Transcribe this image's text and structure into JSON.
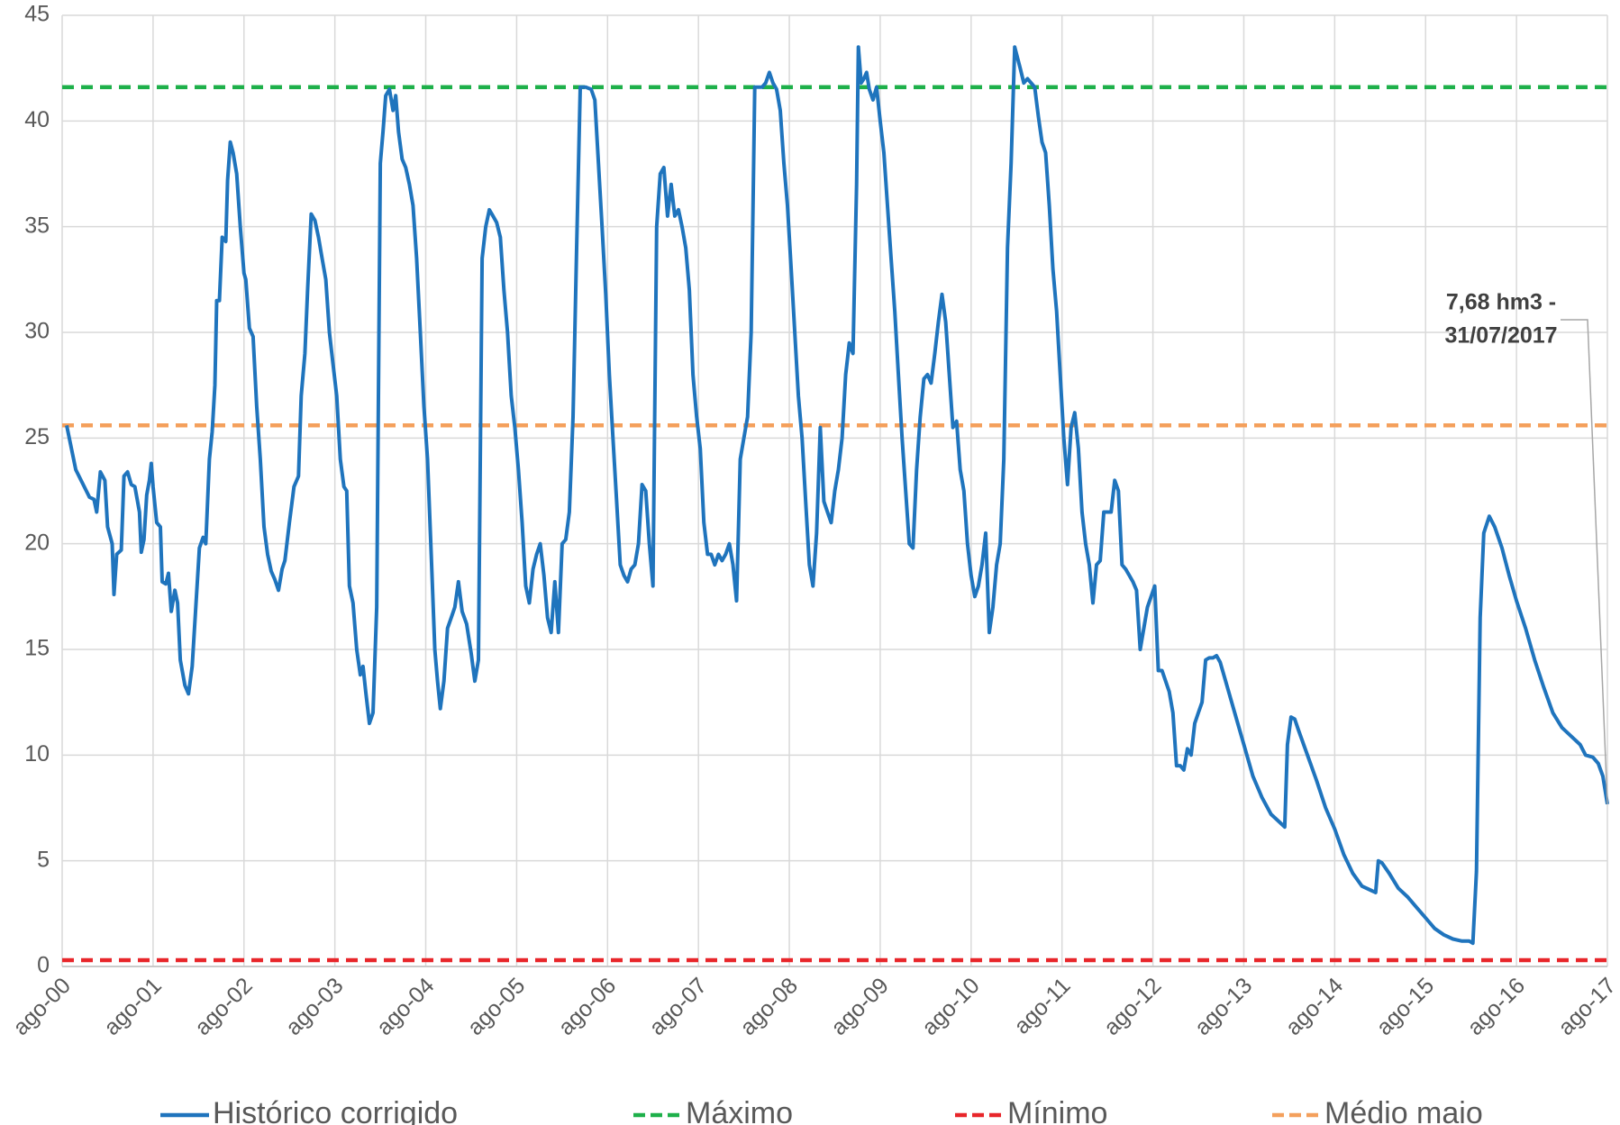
{
  "chart_data": {
    "type": "line",
    "xlim": [
      0,
      17
    ],
    "xticks": [
      {
        "value": 0,
        "label": "ago-00"
      },
      {
        "value": 1,
        "label": "ago-01"
      },
      {
        "value": 2,
        "label": "ago-02"
      },
      {
        "value": 3,
        "label": "ago-03"
      },
      {
        "value": 4,
        "label": "ago-04"
      },
      {
        "value": 5,
        "label": "ago-05"
      },
      {
        "value": 6,
        "label": "ago-06"
      },
      {
        "value": 7,
        "label": "ago-07"
      },
      {
        "value": 8,
        "label": "ago-08"
      },
      {
        "value": 9,
        "label": "ago-09"
      },
      {
        "value": 10,
        "label": "ago-10"
      },
      {
        "value": 11,
        "label": "ago-11"
      },
      {
        "value": 12,
        "label": "ago-12"
      },
      {
        "value": 13,
        "label": "ago-13"
      },
      {
        "value": 14,
        "label": "ago-14"
      },
      {
        "value": 15,
        "label": "ago-15"
      },
      {
        "value": 16,
        "label": "ago-16"
      },
      {
        "value": 17,
        "label": "ago-17"
      }
    ],
    "ylim": [
      0,
      45
    ],
    "yticks": [
      0,
      5,
      10,
      15,
      20,
      25,
      30,
      35,
      40,
      45
    ],
    "grid": true,
    "legend": "bottom",
    "annotation": [
      "7,68 hm3 -",
      "31/07/2017"
    ],
    "series": [
      {
        "name": "Histórico corrigido",
        "color": "#1f74bd",
        "dash": false,
        "x": [
          0.05,
          0.15,
          0.3,
          0.35,
          0.38,
          0.42,
          0.47,
          0.5,
          0.55,
          0.57,
          0.6,
          0.65,
          0.68,
          0.72,
          0.76,
          0.8,
          0.85,
          0.87,
          0.9,
          0.93,
          0.96,
          0.98,
          1,
          1.04,
          1.08,
          1.1,
          1.14,
          1.17,
          1.2,
          1.24,
          1.27,
          1.3,
          1.35,
          1.39,
          1.43,
          1.47,
          1.51,
          1.55,
          1.58,
          1.62,
          1.65,
          1.68,
          1.7,
          1.73,
          1.76,
          1.8,
          1.82,
          1.85,
          1.88,
          1.92,
          1.96,
          2,
          2.02,
          2.06,
          2.1,
          2.14,
          2.18,
          2.22,
          2.26,
          2.3,
          2.34,
          2.38,
          2.42,
          2.45,
          2.5,
          2.55,
          2.6,
          2.63,
          2.67,
          2.7,
          2.74,
          2.78,
          2.82,
          2.86,
          2.9,
          2.94,
          2.98,
          3.02,
          3.06,
          3.1,
          3.13,
          3.16,
          3.2,
          3.24,
          3.28,
          3.31,
          3.34,
          3.38,
          3.42,
          3.46,
          3.5,
          3.53,
          3.56,
          3.6,
          3.64,
          3.67,
          3.7,
          3.74,
          3.78,
          3.82,
          3.86,
          3.9,
          3.94,
          3.98,
          4.02,
          4.06,
          4.1,
          4.13,
          4.16,
          4.2,
          4.24,
          4.28,
          4.32,
          4.36,
          4.4,
          4.45,
          4.5,
          4.54,
          4.58,
          4.62,
          4.66,
          4.7,
          4.74,
          4.78,
          4.82,
          4.86,
          4.9,
          4.94,
          4.98,
          5.02,
          5.06,
          5.1,
          5.14,
          5.18,
          5.22,
          5.26,
          5.3,
          5.34,
          5.38,
          5.42,
          5.46,
          5.5,
          5.54,
          5.58,
          5.62,
          5.66,
          5.7,
          5.76,
          5.82,
          5.86,
          5.9,
          5.94,
          5.98,
          6.02,
          6.06,
          6.1,
          6.14,
          6.18,
          6.22,
          6.26,
          6.3,
          6.34,
          6.38,
          6.42,
          6.46,
          6.5,
          6.54,
          6.58,
          6.62,
          6.66,
          6.7,
          6.74,
          6.78,
          6.82,
          6.86,
          6.9,
          6.94,
          6.98,
          7.02,
          7.06,
          7.1,
          7.14,
          7.18,
          7.22,
          7.26,
          7.3,
          7.34,
          7.38,
          7.42,
          7.46,
          7.5,
          7.54,
          7.58,
          7.62,
          7.66,
          7.7,
          7.74,
          7.78,
          7.82,
          7.86,
          7.9,
          7.94,
          7.98,
          8.02,
          8.06,
          8.1,
          8.14,
          8.18,
          8.22,
          8.26,
          8.3,
          8.34,
          8.38,
          8.42,
          8.46,
          8.5,
          8.54,
          8.58,
          8.62,
          8.66,
          8.7,
          8.74,
          8.76,
          8.79,
          8.82,
          8.85,
          8.88,
          8.92,
          8.96,
          9,
          9.04,
          9.08,
          9.12,
          9.16,
          9.2,
          9.24,
          9.28,
          9.32,
          9.36,
          9.4,
          9.44,
          9.48,
          9.52,
          9.56,
          9.6,
          9.64,
          9.68,
          9.72,
          9.76,
          9.8,
          9.84,
          9.88,
          9.92,
          9.96,
          10,
          10.04,
          10.08,
          10.12,
          10.16,
          10.2,
          10.24,
          10.28,
          10.32,
          10.36,
          10.4,
          10.44,
          10.48,
          10.54,
          10.58,
          10.62,
          10.66,
          10.7,
          10.74,
          10.78,
          10.82,
          10.86,
          10.9,
          10.94,
          10.98,
          11.02,
          11.06,
          11.1,
          11.14,
          11.18,
          11.22,
          11.26,
          11.3,
          11.34,
          11.38,
          11.42,
          11.46,
          11.5,
          11.54,
          11.58,
          11.62,
          11.66,
          11.7,
          11.74,
          11.78,
          11.82,
          11.86,
          11.9,
          11.94,
          11.98,
          12.02,
          12.06,
          12.1,
          12.14,
          12.18,
          12.22,
          12.26,
          12.3,
          12.34,
          12.38,
          12.42,
          12.46,
          12.5,
          12.54,
          12.58,
          12.62,
          12.66,
          12.7,
          12.74,
          12.8,
          12.9,
          13,
          13.1,
          13.2,
          13.3,
          13.4,
          13.45,
          13.48,
          13.52,
          13.56,
          13.6,
          13.7,
          13.8,
          13.9,
          14,
          14.1,
          14.2,
          14.3,
          14.4,
          14.45,
          14.48,
          14.52,
          14.6,
          14.7,
          14.8,
          14.9,
          15,
          15.1,
          15.2,
          15.3,
          15.4,
          15.48,
          15.52,
          15.56,
          15.6,
          15.64,
          15.7,
          15.76,
          15.84,
          15.92,
          16,
          16.1,
          16.2,
          16.3,
          16.4,
          16.5,
          16.6,
          16.7,
          16.76,
          16.84,
          16.9,
          16.95,
          17
        ],
        "values": [
          25.6,
          23.5,
          22.2,
          22.1,
          21.5,
          23.4,
          23.0,
          20.8,
          20.0,
          17.6,
          19.5,
          19.7,
          23.2,
          23.4,
          22.8,
          22.7,
          21.5,
          19.6,
          20.2,
          22.3,
          23.0,
          23.8,
          22.7,
          21.0,
          20.8,
          18.2,
          18.1,
          18.6,
          16.8,
          17.8,
          17.2,
          14.5,
          13.3,
          12.9,
          14.2,
          17.0,
          19.8,
          20.3,
          20.0,
          24.0,
          25.3,
          27.5,
          31.5,
          31.5,
          34.5,
          34.3,
          37.2,
          39.0,
          38.5,
          37.5,
          35.0,
          32.8,
          32.5,
          30.2,
          29.8,
          26.5,
          24.0,
          20.8,
          19.5,
          18.7,
          18.3,
          17.8,
          18.8,
          19.2,
          21.0,
          22.7,
          23.2,
          27.0,
          29.0,
          32.0,
          35.6,
          35.3,
          34.5,
          33.5,
          32.5,
          30.0,
          28.5,
          27.0,
          24.0,
          22.7,
          22.5,
          18.0,
          17.2,
          15.0,
          13.8,
          14.2,
          13.0,
          11.5,
          12.0,
          17.0,
          38.0,
          39.5,
          41.2,
          41.5,
          40.5,
          41.2,
          39.5,
          38.2,
          37.8,
          37.0,
          36.0,
          33.5,
          30.0,
          26.5,
          24.0,
          19.5,
          15.0,
          13.5,
          12.2,
          13.5,
          16.0,
          16.5,
          17.0,
          18.2,
          16.8,
          16.2,
          14.8,
          13.5,
          14.5,
          33.5,
          35.0,
          35.8,
          35.5,
          35.2,
          34.5,
          32.0,
          30.0,
          27.0,
          25.5,
          23.5,
          21.0,
          18.0,
          17.2,
          18.8,
          19.5,
          20.0,
          18.5,
          16.5,
          15.8,
          18.2,
          15.8,
          20.0,
          20.2,
          21.5,
          26.0,
          34.0,
          41.6,
          41.6,
          41.5,
          41.0,
          38.0,
          35.0,
          31.8,
          28.0,
          25.0,
          22.0,
          19.0,
          18.5,
          18.2,
          18.8,
          19.0,
          20.0,
          22.8,
          22.5,
          20.0,
          18.0,
          35.0,
          37.5,
          37.8,
          35.5,
          37.0,
          35.5,
          35.8,
          35.0,
          34.0,
          32.0,
          28.0,
          26.0,
          24.5,
          21.0,
          19.5,
          19.5,
          19.0,
          19.5,
          19.2,
          19.5,
          20.0,
          19.0,
          17.3,
          24.0,
          25.0,
          26.0,
          30.0,
          41.6,
          41.6,
          41.6,
          41.8,
          42.3,
          41.8,
          41.5,
          40.5,
          38.0,
          36.0,
          33.0,
          30.0,
          27.0,
          25.0,
          22.0,
          19.0,
          18.0,
          20.5,
          25.5,
          22.0,
          21.5,
          21.0,
          22.5,
          23.5,
          25.0,
          28.0,
          29.5,
          29.0,
          37.0,
          43.5,
          41.8,
          42.0,
          42.3,
          41.5,
          41.0,
          41.6,
          40.0,
          38.5,
          36.0,
          33.5,
          31.0,
          28.0,
          25.0,
          22.5,
          20.0,
          19.8,
          23.5,
          26.0,
          27.8,
          28.0,
          27.6,
          29.0,
          30.5,
          31.8,
          30.5,
          28.0,
          25.5,
          25.8,
          23.5,
          22.5,
          20.0,
          18.5,
          17.5,
          18.0,
          19.0,
          20.5,
          15.8,
          17.0,
          19.0,
          20.0,
          24.0,
          34.0,
          38.0,
          43.5,
          42.5,
          41.8,
          42.0,
          41.8,
          41.6,
          40.2,
          39.0,
          38.5,
          36.0,
          33.0,
          31.0,
          28.0,
          25.0,
          22.8,
          25.5,
          26.2,
          24.5,
          21.5,
          20.0,
          19.0,
          17.2,
          19.0,
          19.2,
          21.5,
          21.5,
          21.5,
          23.0,
          22.5,
          19.0,
          18.8,
          18.5,
          18.2,
          17.8,
          15.0,
          16.0,
          17.0,
          17.5,
          18.0,
          14.0,
          14.0,
          13.5,
          13.0,
          12.0,
          9.5,
          9.5,
          9.3,
          10.3,
          10.0,
          11.5,
          12.0,
          12.5,
          14.5,
          14.6,
          14.6,
          14.7,
          14.4,
          13.5,
          12.0,
          10.5,
          9.0,
          8.0,
          7.2,
          6.8,
          6.6,
          10.5,
          11.8,
          11.7,
          11.2,
          10.0,
          8.8,
          7.5,
          6.5,
          5.3,
          4.4,
          3.8,
          3.6,
          3.5,
          5.0,
          4.9,
          4.4,
          3.7,
          3.3,
          2.8,
          2.3,
          1.8,
          1.5,
          1.3,
          1.2,
          1.2,
          1.1,
          4.5,
          16.5,
          20.5,
          21.3,
          20.8,
          19.8,
          18.5,
          17.3,
          16.0,
          14.5,
          13.2,
          12.0,
          11.3,
          10.9,
          10.5,
          10.0,
          9.9,
          9.6,
          9.0,
          7.68
        ]
      },
      {
        "name": "Máximo",
        "color": "#1eb04a",
        "dash": true,
        "x": [
          0,
          17
        ],
        "values": [
          41.6,
          41.6
        ]
      },
      {
        "name": "Mínimo",
        "color": "#e8262a",
        "dash": true,
        "x": [
          0,
          17
        ],
        "values": [
          0.3,
          0.3
        ]
      },
      {
        "name": "Médio maio",
        "color": "#f4a05c",
        "dash": true,
        "x": [
          0,
          17
        ],
        "values": [
          25.6,
          25.6
        ]
      }
    ]
  }
}
